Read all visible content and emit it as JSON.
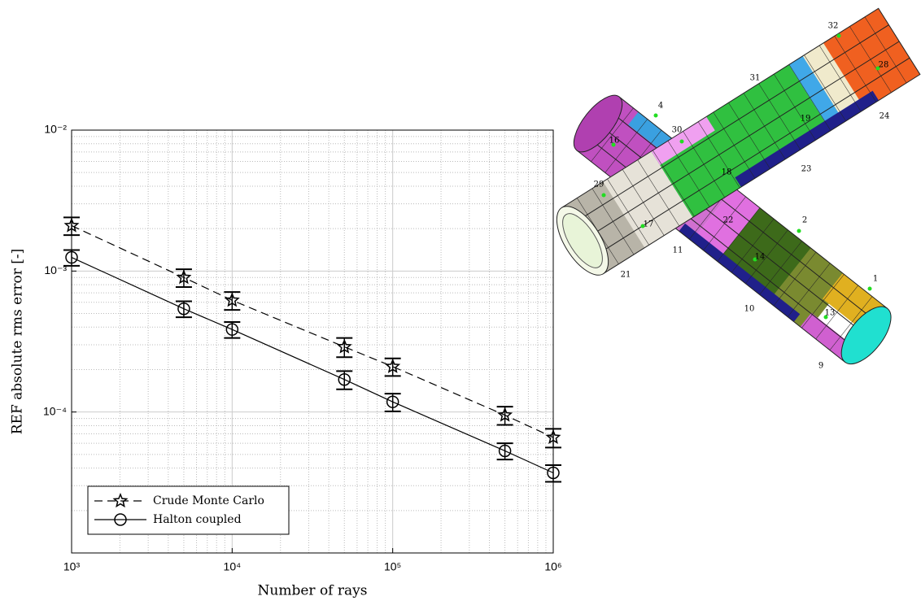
{
  "chart_data": {
    "type": "line",
    "xlabel": "Number of rays",
    "ylabel": "REF absolute rms error [-]",
    "x": [
      1000,
      5000,
      10000,
      50000,
      100000,
      500000,
      1000000
    ],
    "series": [
      {
        "name": "Crude Monte Carlo",
        "color": "#000000",
        "marker": "star",
        "dash": true,
        "values": [
          0.0021,
          0.0009,
          0.00062,
          0.00029,
          0.00021,
          9.5e-05,
          6.6e-05
        ],
        "errors": [
          0.0003,
          0.00013,
          9e-05,
          4.5e-05,
          3e-05,
          1.4e-05,
          1e-05
        ]
      },
      {
        "name": "Halton coupled",
        "color": "#000000",
        "marker": "circle",
        "dash": false,
        "values": [
          0.00125,
          0.00054,
          0.000385,
          0.00017,
          0.000118,
          5.3e-05,
          3.7e-05
        ],
        "errors": [
          0.00016,
          7e-05,
          5e-05,
          2.5e-05,
          1.7e-05,
          7e-06,
          5e-06
        ]
      }
    ],
    "log_x": true,
    "log_y": true,
    "xlim": [
      1000,
      1000000
    ],
    "ylim": [
      1e-05,
      0.01
    ],
    "xticks": [
      {
        "value": 1000,
        "label": "10³"
      },
      {
        "value": 10000,
        "label": "10⁴"
      },
      {
        "value": 100000,
        "label": "10⁵"
      },
      {
        "value": 1000000,
        "label": "10⁶"
      }
    ],
    "yticks": [
      {
        "value": 0.0001,
        "label": "10⁻⁴"
      },
      {
        "value": 0.001,
        "label": "10⁻³"
      },
      {
        "value": 0.01,
        "label": "10⁻²"
      }
    ],
    "xminorticks": [
      2000,
      3000,
      4000,
      5000,
      6000,
      7000,
      8000,
      9000,
      20000,
      30000,
      40000,
      50000,
      60000,
      70000,
      80000,
      90000,
      200000,
      300000,
      400000,
      500000,
      600000,
      700000,
      800000,
      900000
    ],
    "yminorticks": [
      2e-05,
      3e-05,
      4e-05,
      5e-05,
      6e-05,
      7e-05,
      8e-05,
      9e-05,
      0.0002,
      0.0003,
      0.0004,
      0.0005,
      0.0006,
      0.0007,
      0.0008,
      0.0009,
      0.002,
      0.003,
      0.004,
      0.005,
      0.006,
      0.007,
      0.008,
      0.009
    ],
    "grid": true,
    "legend": "lower left"
  },
  "figure": {
    "labels": [
      "4",
      "16",
      "30",
      "29",
      "17",
      "11",
      "21",
      "32",
      "31",
      "28",
      "19",
      "24",
      "18",
      "23",
      "22",
      "2",
      "14",
      "1",
      "10",
      "13",
      "9"
    ]
  }
}
